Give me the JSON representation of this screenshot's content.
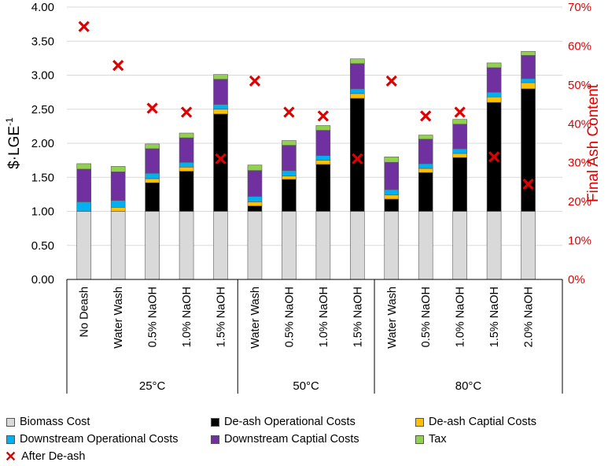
{
  "chart_data": {
    "type": "bar",
    "stacked": true,
    "left_axis": {
      "title": "$·LGE",
      "title_superscript": "-1",
      "ylim": [
        0,
        4
      ],
      "ticks": [
        "0.00",
        "0.50",
        "1.00",
        "1.50",
        "2.00",
        "2.50",
        "3.00",
        "3.50",
        "4.00"
      ]
    },
    "right_axis": {
      "title": "Final Ash Content",
      "ylim": [
        0,
        70
      ],
      "ticks": [
        "0%",
        "10%",
        "20%",
        "30%",
        "40%",
        "50%",
        "60%",
        "70%"
      ],
      "color": "#e00000"
    },
    "groups": [
      {
        "label": "25°C",
        "categories": [
          "No Deash",
          "Water Wash",
          "0.5% NaOH",
          "1.0% NaOH",
          "1.5% NaOH"
        ]
      },
      {
        "label": "50°C",
        "categories": [
          "Water Wash",
          "0.5% NaOH",
          "1.0% NaOH",
          "1.5% NaOH"
        ]
      },
      {
        "label": "80°C",
        "categories": [
          "Water Wash",
          "0.5% NaOH",
          "1.0% NaOH",
          "1.5% NaOH",
          "2.0% NaOH"
        ]
      }
    ],
    "series": [
      {
        "name": "Biomass Cost",
        "color": "#d9d9d9",
        "values": [
          1.0,
          1.0,
          1.0,
          1.0,
          1.0,
          1.0,
          1.0,
          1.0,
          1.0,
          1.0,
          1.0,
          1.0,
          1.0,
          1.0
        ]
      },
      {
        "name": "De-ash Operational Costs",
        "color": "#000000",
        "values": [
          0.0,
          0.0,
          0.42,
          0.59,
          1.43,
          0.08,
          0.47,
          0.69,
          1.66,
          0.18,
          0.57,
          0.79,
          1.6,
          1.8
        ]
      },
      {
        "name": "De-ash Captial Costs",
        "color": "#ffc000",
        "values": [
          0.0,
          0.06,
          0.06,
          0.06,
          0.07,
          0.06,
          0.05,
          0.06,
          0.07,
          0.06,
          0.06,
          0.06,
          0.08,
          0.09
        ]
      },
      {
        "name": "Downstream Operational Costs",
        "color": "#00b0f0",
        "values": [
          0.14,
          0.1,
          0.08,
          0.07,
          0.07,
          0.08,
          0.08,
          0.07,
          0.07,
          0.08,
          0.07,
          0.07,
          0.07,
          0.06
        ]
      },
      {
        "name": "Downstream Captial Costs",
        "color": "#7030a0",
        "values": [
          0.48,
          0.42,
          0.36,
          0.36,
          0.37,
          0.38,
          0.37,
          0.37,
          0.37,
          0.4,
          0.36,
          0.36,
          0.36,
          0.34
        ]
      },
      {
        "name": "Tax",
        "color": "#92d050",
        "values": [
          0.08,
          0.08,
          0.07,
          0.07,
          0.07,
          0.08,
          0.07,
          0.07,
          0.07,
          0.08,
          0.06,
          0.07,
          0.07,
          0.06
        ]
      }
    ],
    "markers": {
      "name": "After De-ash",
      "color": "#e00000",
      "axis": "right",
      "values": [
        65,
        55,
        44,
        43,
        31,
        51,
        43,
        42,
        31,
        51,
        42,
        43,
        31.5,
        24.5
      ]
    },
    "legend_position": "bottom"
  }
}
